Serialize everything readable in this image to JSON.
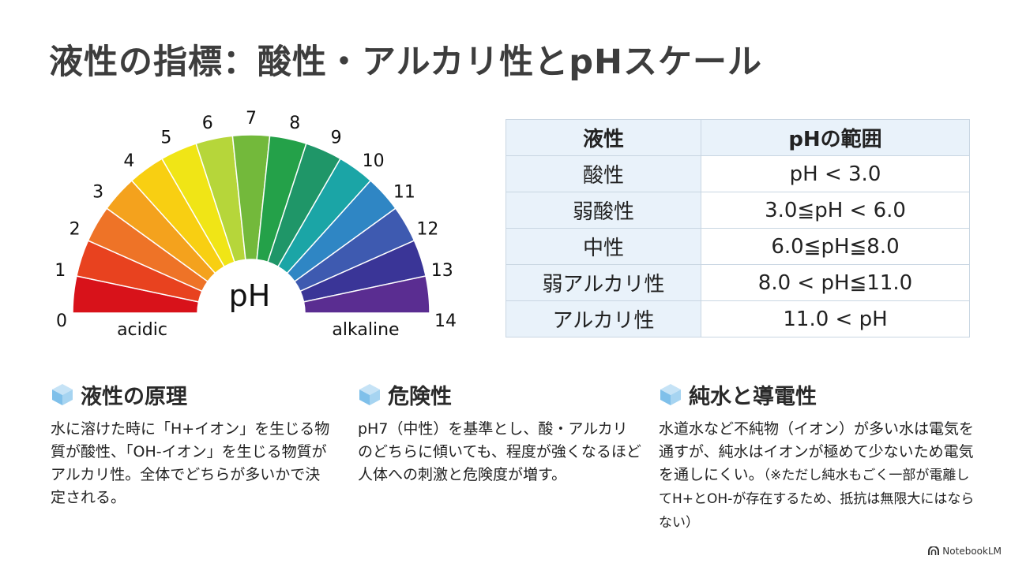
{
  "title": "液性の指標：酸性・アルカリ性とpHスケール",
  "chart_data": {
    "type": "gauge",
    "center_label": "pH",
    "left_label": "acidic",
    "right_label": "alkaline",
    "ticks": [
      "0",
      "1",
      "2",
      "3",
      "4",
      "5",
      "6",
      "7",
      "8",
      "9",
      "10",
      "11",
      "12",
      "13",
      "14"
    ],
    "segment_colors": [
      "#d8121a",
      "#e8421f",
      "#ee7327",
      "#f4a21d",
      "#f8cf12",
      "#f0e516",
      "#b6d63a",
      "#73b93b",
      "#24a149",
      "#1f9668",
      "#1ba5a6",
      "#2f86c4",
      "#3e5ab0",
      "#3a3597",
      "#5a2d91"
    ]
  },
  "table": {
    "headers": [
      "液性",
      "pHの範囲"
    ],
    "rows": [
      [
        "酸性",
        "pH < 3.0"
      ],
      [
        "弱酸性",
        "3.0≦pH < 6.0"
      ],
      [
        "中性",
        "6.0≦pH≦8.0"
      ],
      [
        "弱アルカリ性",
        "8.0 < pH≦11.0"
      ],
      [
        "アルカリ性",
        "11.0 < pH"
      ]
    ]
  },
  "sections": [
    {
      "icon": "cube-icon",
      "title": "液性の原理",
      "body": "水に溶けた時に「H+イオン」を生じる物質が酸性、「OH-イオン」を生じる物質がアルカリ性。全体でどちらが多いかで決定される。"
    },
    {
      "icon": "cube-icon",
      "title": "危険性",
      "body": "pH7（中性）を基準とし、酸・アルカリのどちらに傾いても、程度が強くなるほど人体への刺激と危険度が増す。"
    },
    {
      "icon": "cube-icon",
      "title": "純水と導電性",
      "body": "水道水など不純物（イオン）が多い水は電気を通すが、純水はイオンが極めて少ないため電気を通しにくい。",
      "note": "（※ただし純水もごく一部が電離してH+とOH-が存在するため、抵抗は無限大にはならない）"
    }
  ],
  "brand": "NotebookLM",
  "colors": {
    "cube_top": "#c6e3f6",
    "cube_left": "#7fc0ea",
    "cube_right": "#a6d4f1"
  }
}
